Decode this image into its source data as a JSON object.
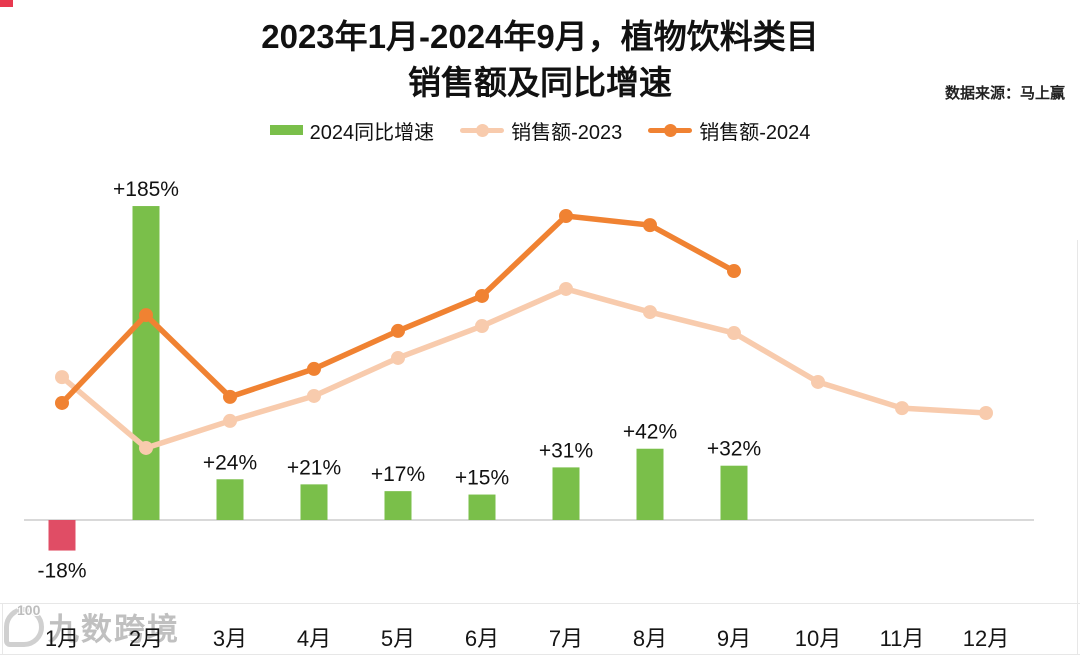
{
  "title": {
    "line1": "2023年1月-2024年9月，植物饮料类目",
    "line2": "销售额及同比增速"
  },
  "source": "数据来源：马上赢",
  "watermark": {
    "badge": "100",
    "text": "九数跨境"
  },
  "colors": {
    "growth_positive": "#7ABF4A",
    "growth_negative": "#E04D65",
    "sales_2023": "#F8CBAD",
    "sales_2024": "#F08232",
    "axis_line": "#D9D9D9",
    "frame_line": "#E7E7E7",
    "label_text": "#111111"
  },
  "legend": [
    {
      "label": "2024同比增速",
      "marker": "bar",
      "color_key": "growth_positive"
    },
    {
      "label": "销售额-2023",
      "marker": "line",
      "color_key": "sales_2023"
    },
    {
      "label": "销售额-2024",
      "marker": "line",
      "color_key": "sales_2024"
    }
  ],
  "chart_data": {
    "type": "combo-bar-line",
    "categories": [
      "1月",
      "2月",
      "3月",
      "4月",
      "5月",
      "6月",
      "7月",
      "8月",
      "9月",
      "10月",
      "11月",
      "12月"
    ],
    "series": [
      {
        "name": "2024同比增速",
        "type": "bar",
        "unit": "percent",
        "values": [
          -18,
          185,
          24,
          21,
          17,
          15,
          31,
          42,
          32,
          null,
          null,
          null
        ],
        "data_labels": [
          "-18%",
          "+185%",
          "+24%",
          "+21%",
          "+17%",
          "+15%",
          "+31%",
          "+42%",
          "+32%",
          null,
          null,
          null
        ]
      },
      {
        "name": "销售额-2023",
        "type": "line",
        "unit": "sales index, no axis shown (Jul-2024 = 100)",
        "values": [
          47.0,
          23.7,
          32.6,
          40.8,
          53.3,
          63.8,
          76.0,
          68.4,
          61.5,
          45.4,
          36.8,
          35.2
        ]
      },
      {
        "name": "销售额-2024",
        "type": "line",
        "unit": "sales index, no axis shown (Jul-2024 = 100)",
        "values": [
          38.5,
          67.4,
          40.5,
          49.7,
          62.2,
          73.7,
          100.0,
          97.0,
          81.9,
          null,
          null,
          null
        ]
      }
    ],
    "legend_position": "top",
    "grid": false,
    "y_axis_visible": false
  }
}
